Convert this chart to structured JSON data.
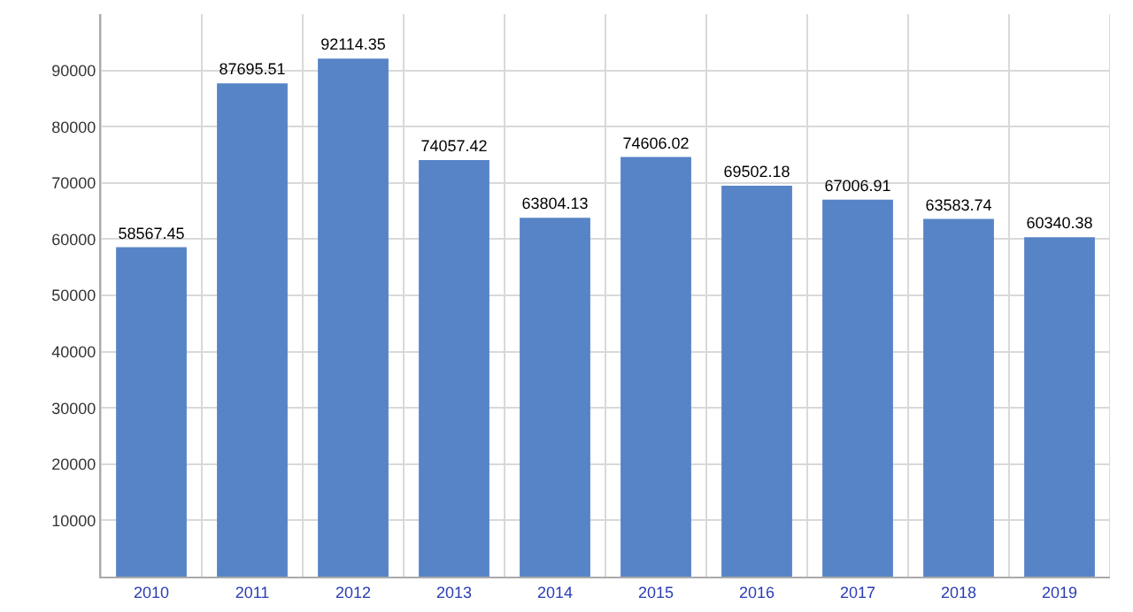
{
  "chart_data": {
    "type": "bar",
    "categories": [
      "2010",
      "2011",
      "2012",
      "2013",
      "2014",
      "2015",
      "2016",
      "2017",
      "2018",
      "2019"
    ],
    "values": [
      58567.45,
      87695.51,
      92114.35,
      74057.42,
      63804.13,
      74606.02,
      69502.18,
      67006.91,
      63583.74,
      60340.38
    ],
    "color": "#5784c6",
    "ylim": [
      0,
      100000
    ],
    "yticks": [
      10000,
      20000,
      30000,
      40000,
      50000,
      60000,
      70000,
      80000,
      90000
    ],
    "grid": true,
    "data_labels": true
  }
}
